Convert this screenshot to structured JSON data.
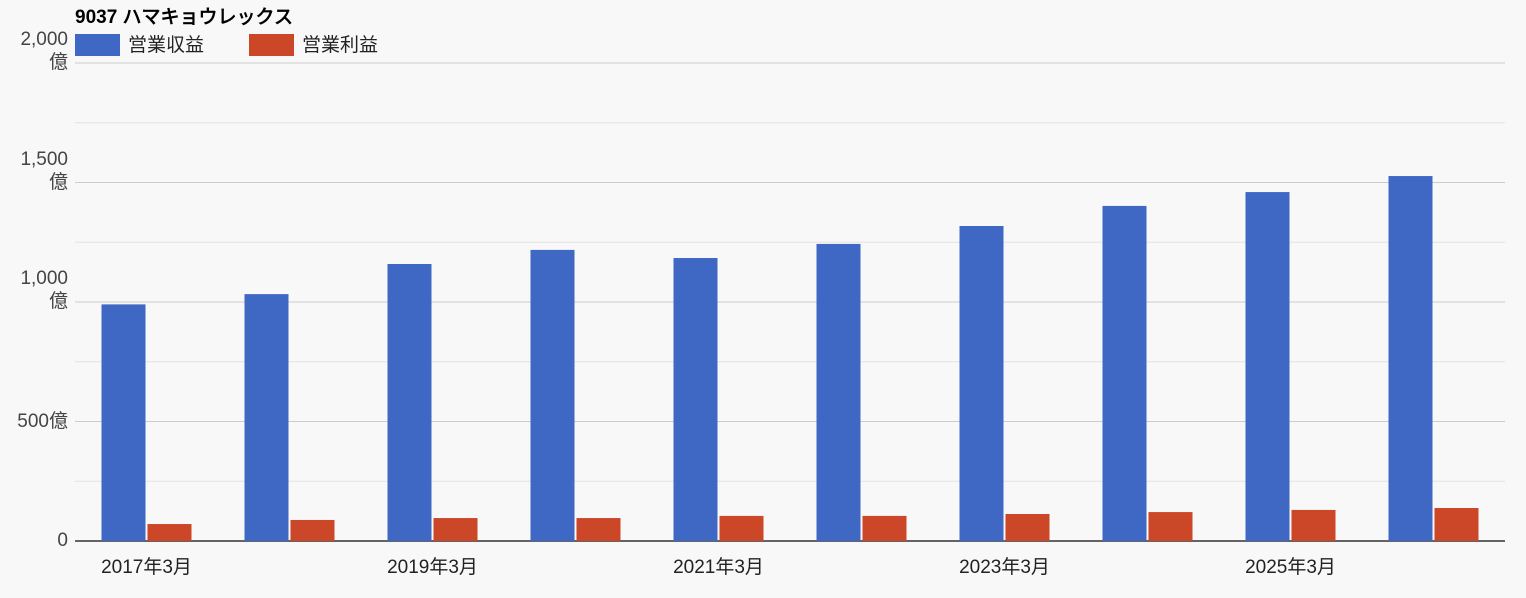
{
  "chart_data": {
    "type": "bar",
    "title": "9037 ハマキョウレックス",
    "categories": [
      "2017年3月",
      null,
      "2019年3月",
      null,
      "2021年3月",
      null,
      "2023年3月",
      null,
      "2025年3月",
      null
    ],
    "series": [
      {
        "name": "営業収益",
        "color": "#3f68c5",
        "values": [
          990,
          1033,
          1159,
          1218,
          1184,
          1243,
          1318,
          1402,
          1460,
          1527
        ]
      },
      {
        "name": "営業利益",
        "color": "#cc4628",
        "values": [
          71,
          88,
          96,
          96,
          105,
          105,
          113,
          121,
          130,
          138
        ]
      }
    ],
    "ylim": [
      0,
      2000
    ],
    "yticks": [
      0,
      {
        "value": 500,
        "label": "500億"
      },
      {
        "value": 1000,
        "label": "1,000億"
      },
      {
        "value": 1500,
        "label": "1,500億"
      },
      {
        "value": 2000,
        "label": "2,000億"
      }
    ],
    "grid": true
  }
}
